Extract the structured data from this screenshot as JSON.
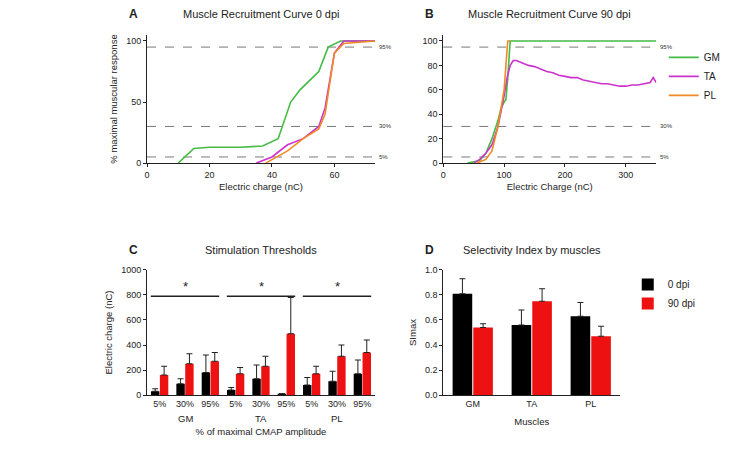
{
  "chart_data": [
    {
      "type": "line",
      "panel": "A",
      "title": "Muscle Recruitment Curve 0 dpi",
      "x_label": "Electric charge (nC)",
      "y_label": "% maximal muscular response",
      "xlim": [
        0,
        73
      ],
      "xticks": [
        0,
        20,
        40,
        60
      ],
      "ylim": [
        0,
        105
      ],
      "yticks": [
        0,
        50,
        100
      ],
      "reference_lines": [
        {
          "value": 95,
          "label": "95%"
        },
        {
          "value": 30,
          "label": "30%"
        },
        {
          "value": 5,
          "label": "5%"
        }
      ],
      "series": [
        {
          "name": "GM",
          "color": "#44bb44",
          "x": [
            10,
            15,
            20,
            30,
            37,
            42,
            46,
            49,
            53,
            55,
            58,
            62,
            73
          ],
          "values": [
            0,
            12,
            13,
            13,
            14,
            20,
            50,
            60,
            70,
            75,
            95,
            100,
            100
          ]
        },
        {
          "name": "TA",
          "color": "#cc33cc",
          "x": [
            35,
            40,
            45,
            50,
            55,
            57,
            60,
            63,
            73
          ],
          "values": [
            0,
            5,
            15,
            20,
            30,
            45,
            90,
            100,
            100
          ]
        },
        {
          "name": "PL",
          "color": "#f08a24",
          "x": [
            38,
            40,
            45,
            50,
            55,
            57,
            60,
            63,
            73
          ],
          "values": [
            0,
            3,
            10,
            20,
            28,
            40,
            90,
            98,
            100
          ]
        }
      ]
    },
    {
      "type": "line",
      "panel": "B",
      "title": "Muscle Recruitment Curve 90 dpi",
      "x_label": "Electric Charge (nC)",
      "xlim": [
        0,
        350
      ],
      "xticks": [
        0,
        100,
        200,
        300
      ],
      "ylim": [
        0,
        105
      ],
      "yticks": [
        0,
        20,
        40,
        60,
        80,
        100
      ],
      "legend": "right",
      "reference_lines": [
        {
          "value": 95,
          "label": "95%"
        },
        {
          "value": 30,
          "label": "30%"
        },
        {
          "value": 5,
          "label": "5%"
        }
      ],
      "series": [
        {
          "name": "GM",
          "color": "#44bb44",
          "x": [
            40,
            60,
            70,
            80,
            90,
            95,
            100,
            103,
            106,
            110,
            350
          ],
          "values": [
            0,
            2,
            8,
            20,
            35,
            45,
            50,
            52,
            70,
            100,
            100
          ]
        },
        {
          "name": "TA",
          "color": "#cc33cc",
          "x": [
            50,
            60,
            70,
            80,
            90,
            95,
            100,
            105,
            110,
            115,
            120,
            130,
            140,
            150,
            160,
            170,
            180,
            190,
            200,
            210,
            220,
            230,
            240,
            250,
            260,
            270,
            280,
            290,
            300,
            310,
            320,
            330,
            340,
            345,
            350
          ],
          "values": [
            0,
            3,
            8,
            15,
            30,
            42,
            55,
            70,
            80,
            84,
            84,
            82,
            80,
            79,
            77,
            75,
            74,
            72,
            71,
            70,
            70,
            68,
            67,
            66,
            65,
            65,
            64,
            63,
            63,
            64,
            64,
            65,
            66,
            70,
            66
          ]
        },
        {
          "name": "PL",
          "color": "#f08a24",
          "x": [
            55,
            70,
            80,
            90,
            95,
            100,
            103,
            106,
            110
          ],
          "values": [
            0,
            3,
            10,
            30,
            45,
            60,
            80,
            100,
            100
          ]
        }
      ]
    },
    {
      "type": "bar",
      "panel": "C",
      "title": "Stimulation Thresholds",
      "x_label": "% of maximal CMAP amplitude",
      "y_label": "Electric charge (nC)",
      "categories": [
        "5%",
        "30%",
        "95%",
        "5%",
        "30%",
        "95%",
        "5%",
        "30%",
        "95%"
      ],
      "groups": [
        "GM",
        "TA",
        "PL"
      ],
      "ylim": [
        0,
        1000
      ],
      "yticks": [
        0,
        200,
        400,
        600,
        800,
        1000
      ],
      "significance": [
        {
          "group": "GM",
          "text": "*",
          "y": 790
        },
        {
          "group": "TA",
          "text": "*",
          "y": 790
        },
        {
          "group": "PL",
          "text": "*",
          "y": 790
        }
      ],
      "series": [
        {
          "name": "0 dpi",
          "color": "#000000",
          "values": [
            30,
            90,
            180,
            40,
            130,
            10,
            80,
            110,
            170
          ],
          "errors": [
            20,
            40,
            140,
            20,
            110,
            0,
            60,
            80,
            110
          ]
        },
        {
          "name": "90 dpi",
          "color": "#ee1111",
          "values": [
            160,
            250,
            270,
            170,
            230,
            490,
            170,
            310,
            340
          ],
          "errors": [
            70,
            80,
            70,
            50,
            80,
            290,
            60,
            90,
            100
          ]
        }
      ]
    },
    {
      "type": "bar",
      "panel": "D",
      "title": "Selectivity Index by muscles",
      "x_label": "Muscles",
      "y_label": "SImax",
      "categories": [
        "GM",
        "TA",
        "PL"
      ],
      "ylim": [
        0,
        1
      ],
      "yticks": [
        {
          "value": 0,
          "label": "0.0"
        },
        0.2,
        0.4,
        0.6,
        0.8,
        {
          "value": 1,
          "label": "1.0"
        }
      ],
      "legend": "top right",
      "series": [
        {
          "name": "0 dpi",
          "color": "#000000",
          "values": [
            0.81,
            0.56,
            0.63
          ],
          "errors": [
            0.12,
            0.12,
            0.11
          ]
        },
        {
          "name": "90 dpi",
          "color": "#ee1111",
          "values": [
            0.54,
            0.75,
            0.47
          ],
          "errors": [
            0.03,
            0.1,
            0.08
          ]
        }
      ]
    }
  ]
}
